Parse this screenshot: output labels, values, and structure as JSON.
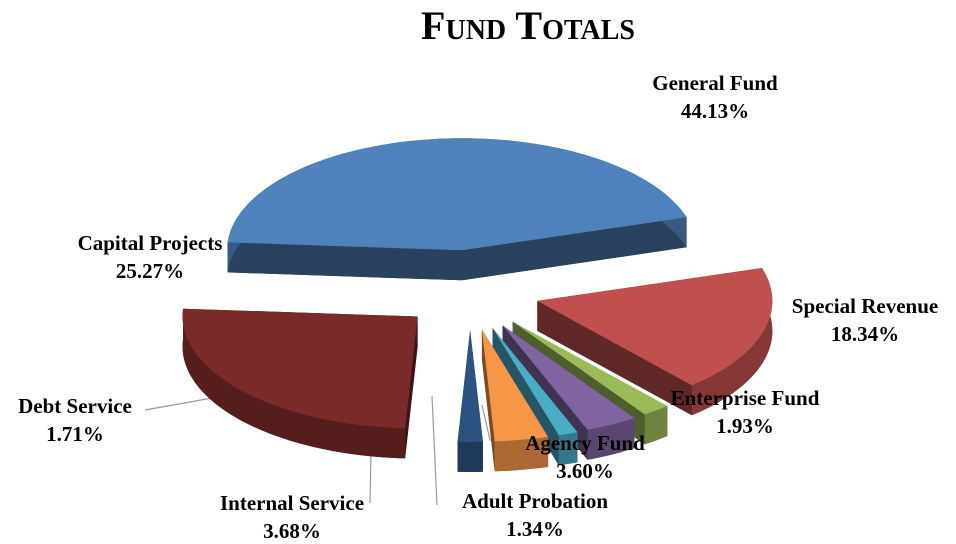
{
  "chart_data": {
    "type": "pie",
    "title": "Fund Totals",
    "categories": [
      "General Fund",
      "Special Revenue",
      "Enterprise Fund",
      "Agency Fund",
      "Adult Probation",
      "Internal Service",
      "Debt Service",
      "Capital Projects"
    ],
    "values": [
      44.13,
      18.34,
      1.93,
      3.6,
      1.34,
      3.68,
      1.71,
      25.27
    ],
    "value_labels": [
      "44.13%",
      "18.34%",
      "1.93%",
      "3.60%",
      "1.34%",
      "3.68%",
      "1.71%",
      "25.27%"
    ],
    "colors": [
      "#4f81bd",
      "#c0504d",
      "#9bbb59",
      "#8064a2",
      "#4bacc6",
      "#f79646",
      "#2c5282",
      "#7a2a28"
    ]
  }
}
